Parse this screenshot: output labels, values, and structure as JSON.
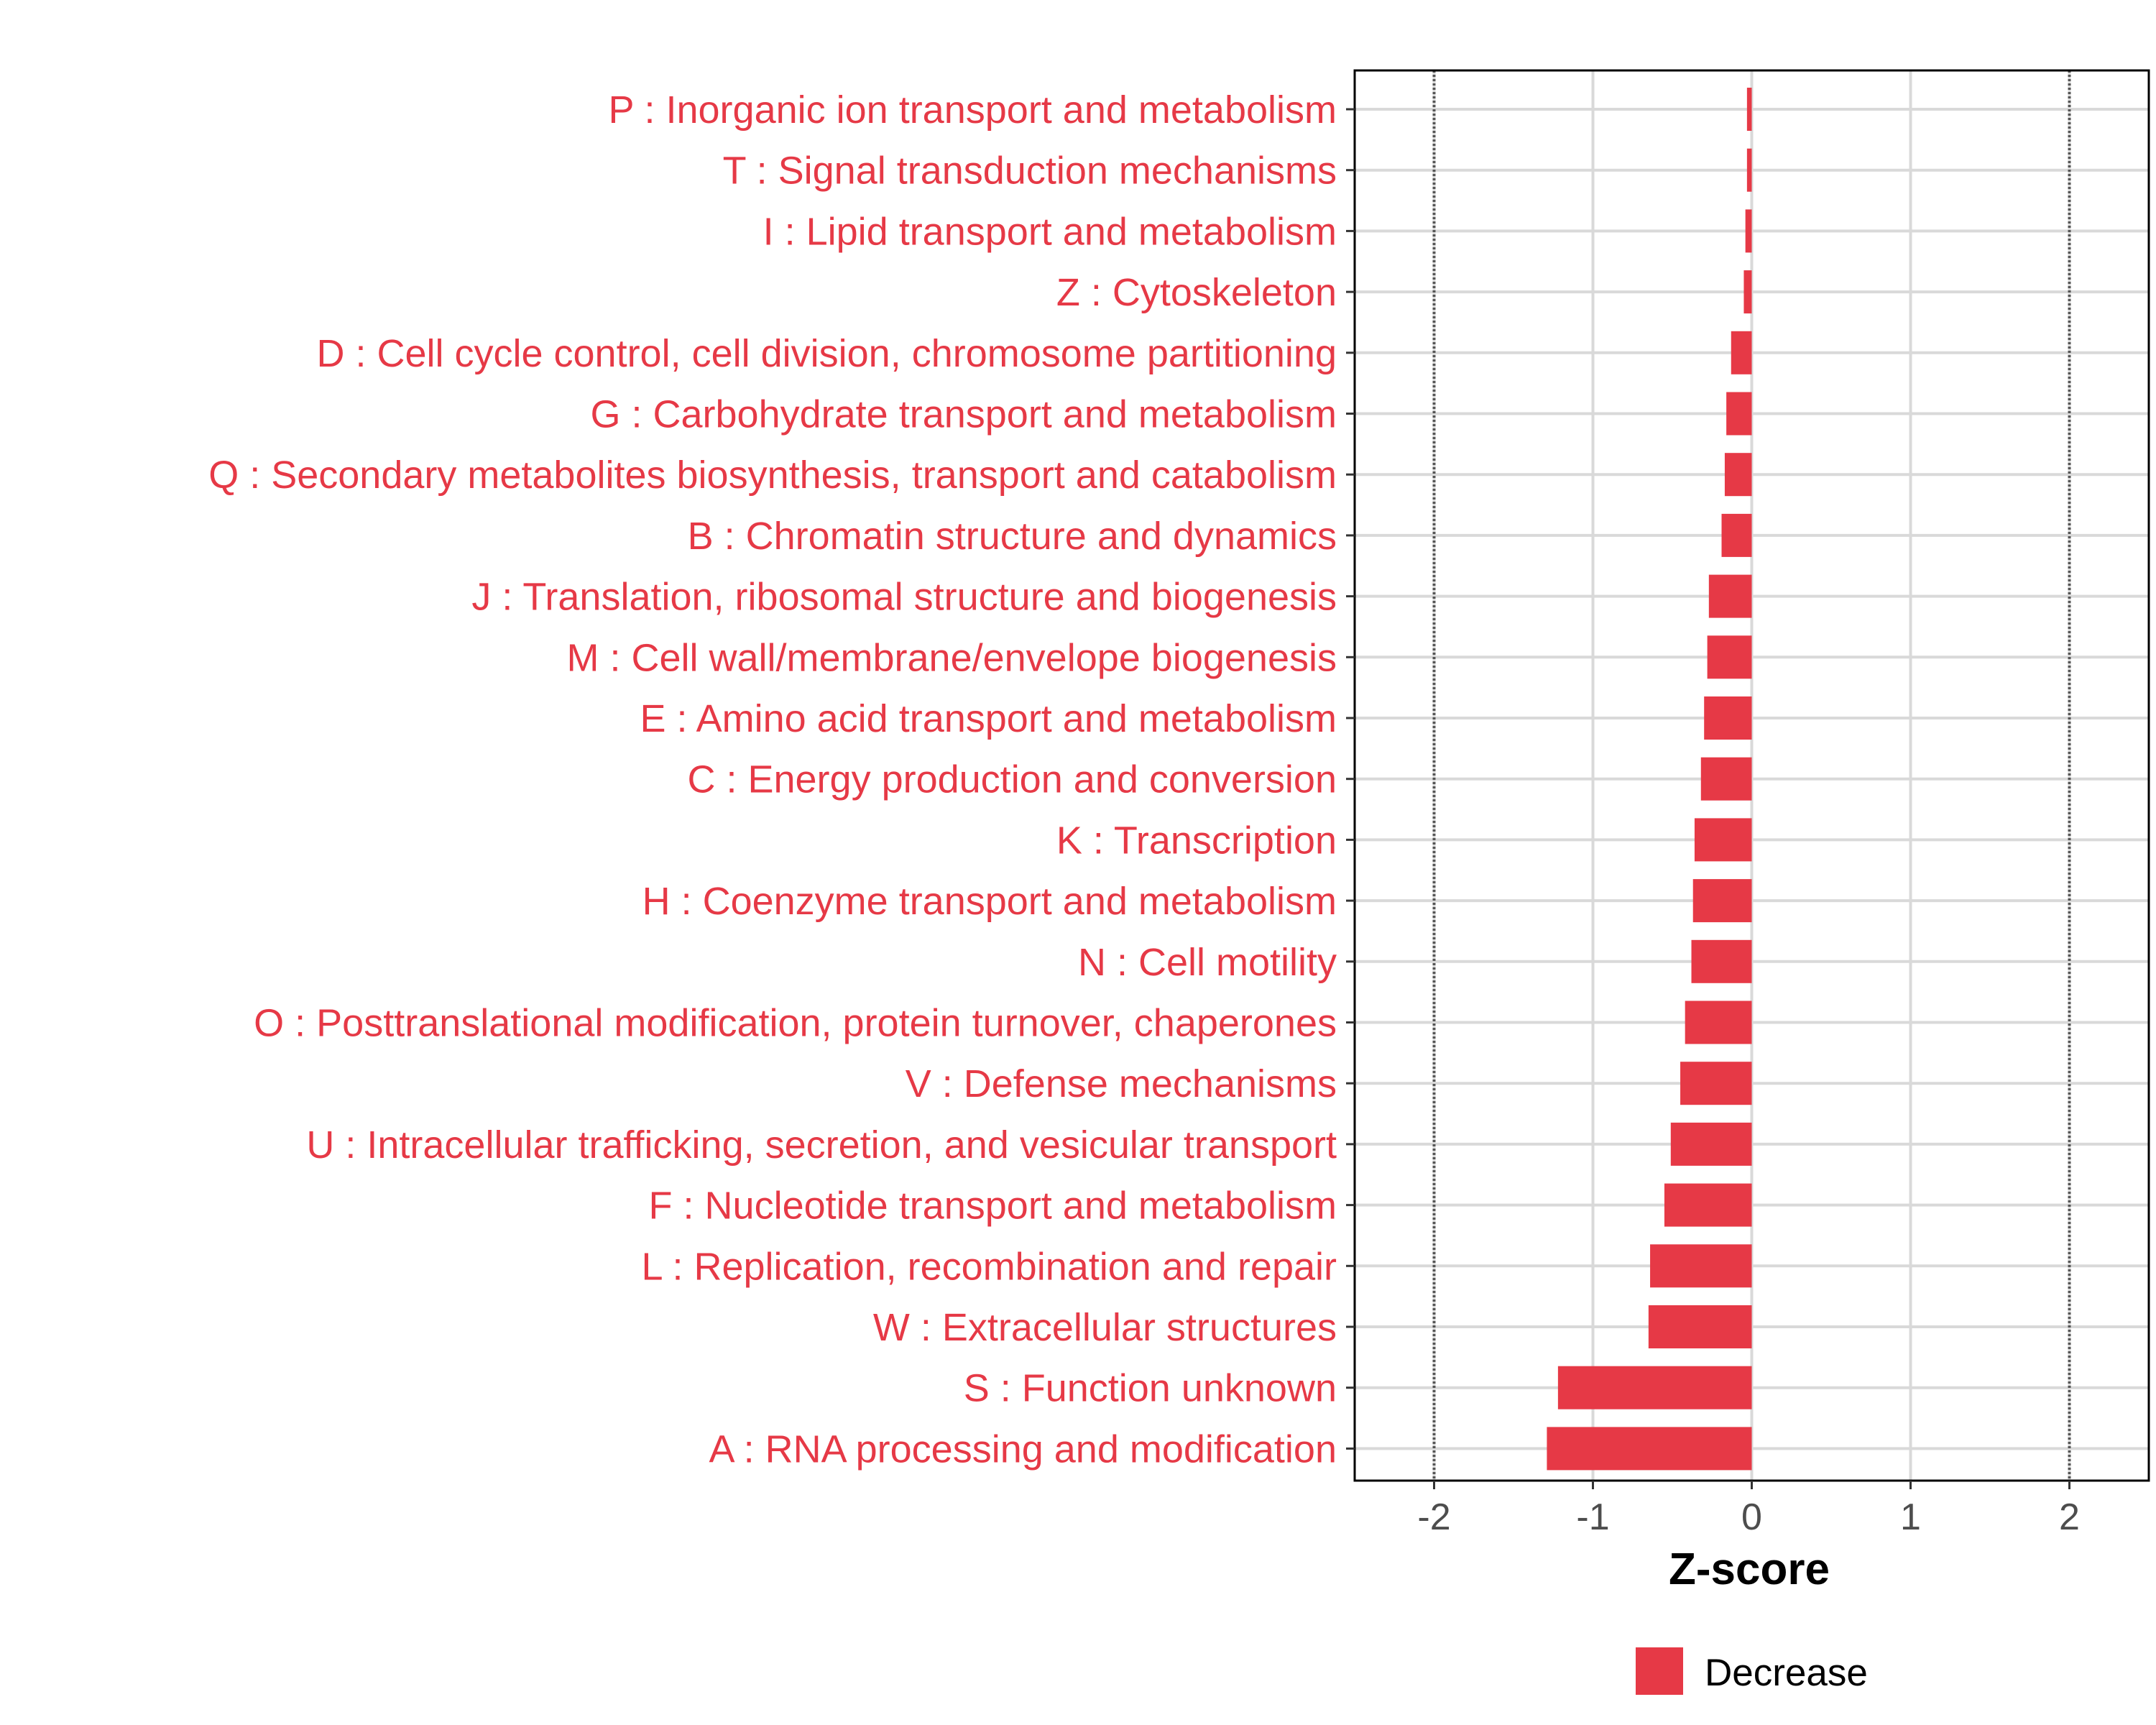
{
  "colors": {
    "bar": "#e63946",
    "label": "#e63946",
    "grid": "#d9d9d9",
    "refline": "#555555",
    "axis_text": "#4d4d4d",
    "frame": "#000000"
  },
  "chart_data": {
    "type": "bar",
    "orientation": "horizontal",
    "xlabel": "Z-score",
    "xlim": [
      -2.5,
      2.5
    ],
    "xticks": [
      -2,
      -1,
      0,
      1,
      2
    ],
    "xtick_labels": [
      "-2",
      "-1",
      "0",
      "1",
      "2"
    ],
    "reference_lines": [
      -2,
      2
    ],
    "legend": {
      "position": "bottom",
      "entries": [
        {
          "label": "Decrease",
          "color": "#e63946"
        }
      ]
    },
    "categories": [
      "P : Inorganic ion transport and metabolism",
      "T : Signal transduction mechanisms",
      "I : Lipid transport and metabolism",
      "Z : Cytoskeleton",
      "D : Cell cycle control, cell division, chromosome partitioning",
      "G : Carbohydrate transport and metabolism",
      "Q : Secondary metabolites biosynthesis, transport and catabolism",
      "B : Chromatin structure and dynamics",
      "J : Translation, ribosomal structure and biogenesis",
      "M : Cell wall/membrane/envelope biogenesis",
      "E : Amino acid transport and metabolism",
      "C : Energy production and conversion",
      "K : Transcription",
      "H : Coenzyme transport and metabolism",
      "N : Cell motility",
      "O : Posttranslational modification, protein turnover, chaperones",
      "V : Defense mechanisms",
      "U : Intracellular trafficking, secretion, and vesicular transport",
      "F : Nucleotide transport and metabolism",
      "L : Replication, recombination and repair",
      "W : Extracellular structures",
      "S : Function unknown",
      "A : RNA processing and modification"
    ],
    "values": [
      -0.03,
      -0.03,
      -0.04,
      -0.05,
      -0.13,
      -0.16,
      -0.17,
      -0.19,
      -0.27,
      -0.28,
      -0.3,
      -0.32,
      -0.36,
      -0.37,
      -0.38,
      -0.42,
      -0.45,
      -0.51,
      -0.55,
      -0.64,
      -0.65,
      -1.22,
      -1.29
    ],
    "series": [
      {
        "name": "Decrease",
        "color": "#e63946"
      }
    ]
  }
}
